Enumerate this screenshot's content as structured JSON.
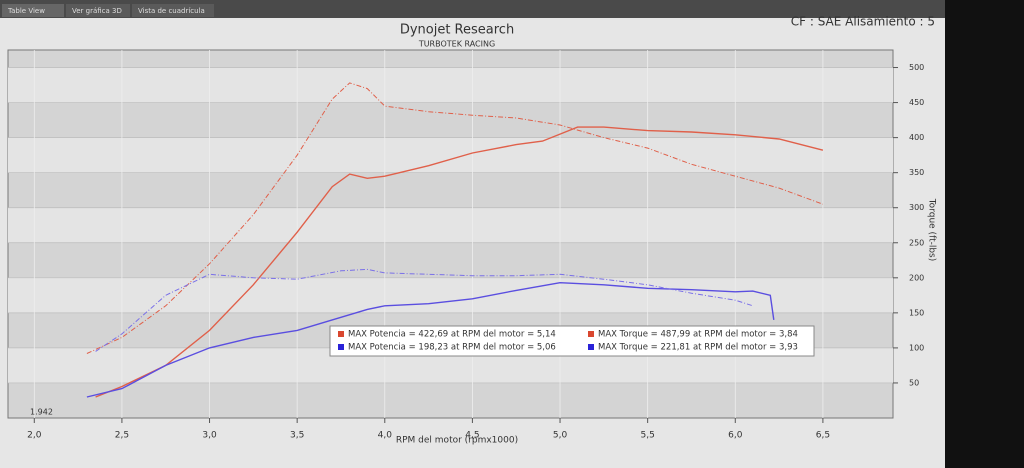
{
  "tabs": [
    "Table View",
    "Ver gráfica 3D",
    "Vista de cuadrícula"
  ],
  "header_right": "CF : SAE Alisamiento : 5",
  "chart_data": {
    "type": "line",
    "title": "Dynojet Research",
    "subtitle": "TURBOTEK RACING",
    "xlabel": "RPM del motor (rpmx1000)",
    "ylabel": "Torque (ft-lbs)",
    "cursor_label": "1.942",
    "xlim": [
      1.85,
      6.9
    ],
    "ylim": [
      0,
      525
    ],
    "xticks": [
      {
        "value": 2,
        "label": "2,0"
      },
      {
        "value": 2.5,
        "label": "2,5"
      },
      {
        "value": 3,
        "label": "3,0"
      },
      {
        "value": 3.5,
        "label": "3,5"
      },
      {
        "value": 4,
        "label": "4,0"
      },
      {
        "value": 4.5,
        "label": "4,5"
      },
      {
        "value": 5,
        "label": "5,0"
      },
      {
        "value": 5.5,
        "label": "5,5"
      },
      {
        "value": 6,
        "label": "6,0"
      },
      {
        "value": 6.5,
        "label": "6,5"
      }
    ],
    "yticks": [
      50,
      100,
      150,
      200,
      250,
      300,
      350,
      400,
      450,
      500
    ],
    "grid": true,
    "series": [
      {
        "color": "#e0604a",
        "dash": false,
        "x": [
          2.35,
          2.5,
          2.75,
          3.0,
          3.25,
          3.5,
          3.7,
          3.8,
          3.9,
          4.0,
          4.25,
          4.5,
          4.75,
          4.9,
          5.0,
          5.1,
          5.25,
          5.5,
          5.75,
          6.0,
          6.25,
          6.5
        ],
        "values": [
          30,
          45,
          75,
          125,
          190,
          265,
          330,
          348,
          342,
          345,
          360,
          378,
          390,
          395,
          405,
          415,
          415,
          410,
          408,
          404,
          398,
          382
        ]
      },
      {
        "color": "#e0604a",
        "dash": true,
        "x": [
          2.3,
          2.5,
          2.75,
          3.0,
          3.25,
          3.5,
          3.7,
          3.8,
          3.9,
          4.0,
          4.25,
          4.5,
          4.75,
          5.0,
          5.25,
          5.5,
          5.75,
          6.0,
          6.25,
          6.5
        ],
        "values": [
          92,
          115,
          160,
          220,
          290,
          375,
          455,
          478,
          470,
          445,
          437,
          432,
          428,
          418,
          400,
          385,
          362,
          345,
          328,
          305
        ]
      },
      {
        "color": "#5a4ee0",
        "dash": false,
        "x": [
          2.3,
          2.5,
          2.75,
          3.0,
          3.25,
          3.5,
          3.7,
          3.9,
          4.0,
          4.25,
          4.5,
          4.75,
          5.0,
          5.25,
          5.5,
          5.75,
          6.0,
          6.1,
          6.2,
          6.22
        ],
        "values": [
          30,
          42,
          75,
          100,
          115,
          125,
          140,
          155,
          160,
          163,
          170,
          182,
          193,
          190,
          185,
          183,
          180,
          181,
          175,
          140
        ]
      },
      {
        "color": "#7a70e8",
        "dash": true,
        "x": [
          2.35,
          2.5,
          2.75,
          3.0,
          3.25,
          3.5,
          3.75,
          3.9,
          4.0,
          4.5,
          4.75,
          5.0,
          5.25,
          5.5,
          5.75,
          6.0,
          6.1
        ],
        "values": [
          95,
          120,
          175,
          205,
          200,
          198,
          210,
          212,
          207,
          203,
          203,
          205,
          198,
          190,
          178,
          168,
          160
        ]
      }
    ],
    "legend": [
      {
        "text": "MAX  Potencia  = 422,69 at  RPM del motor  = 5,14",
        "color": "#d9472f"
      },
      {
        "text": "MAX  Torque  = 487,99 at  RPM del motor  = 3,84",
        "color": "#d9472f"
      },
      {
        "text": "MAX  Potencia  = 198,23 at  RPM del motor  = 5,06",
        "color": "#2a22d8"
      },
      {
        "text": "MAX  Torque  = 221,81 at  RPM del motor  = 3,93",
        "color": "#2a22d8"
      }
    ]
  }
}
